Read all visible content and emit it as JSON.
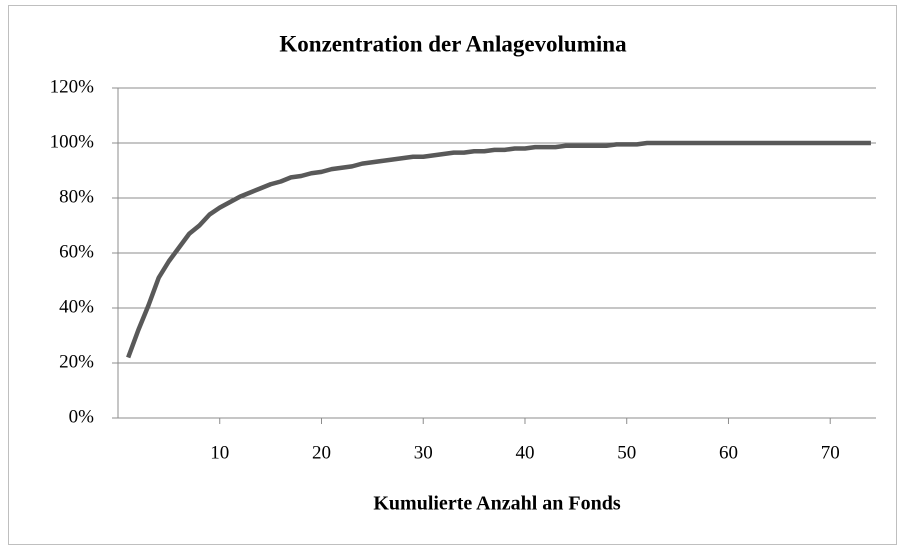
{
  "chart_data": {
    "type": "line",
    "title": "Konzentration der Anlagevolumina",
    "xlabel": "Kumulierte Anzahl an Fonds",
    "x": [
      1,
      2,
      3,
      4,
      5,
      6,
      7,
      8,
      9,
      10,
      11,
      12,
      13,
      14,
      15,
      16,
      17,
      18,
      19,
      20,
      21,
      22,
      23,
      24,
      25,
      26,
      27,
      28,
      29,
      30,
      31,
      32,
      33,
      34,
      35,
      36,
      37,
      38,
      39,
      40,
      41,
      42,
      43,
      44,
      45,
      46,
      47,
      48,
      49,
      50,
      51,
      52,
      53,
      54,
      55,
      56,
      57,
      58,
      59,
      60,
      61,
      62,
      63,
      64,
      65,
      66,
      67,
      68,
      69,
      70,
      71,
      72,
      73,
      74
    ],
    "series": [
      {
        "name": "Konzentration",
        "color": "#595959",
        "values": [
          22,
          32,
          41,
          51,
          57,
          62,
          67,
          70,
          74,
          76.5,
          78.5,
          80.5,
          82,
          83.5,
          85,
          86,
          87.5,
          88,
          89,
          89.5,
          90.5,
          91,
          91.5,
          92.5,
          93,
          93.5,
          94,
          94.5,
          95,
          95,
          95.5,
          96,
          96.5,
          96.5,
          97,
          97,
          97.5,
          97.5,
          98,
          98,
          98.5,
          98.5,
          98.5,
          99,
          99,
          99,
          99,
          99,
          99.5,
          99.5,
          99.5,
          100,
          100,
          100,
          100,
          100,
          100,
          100,
          100,
          100,
          100,
          100,
          100,
          100,
          100,
          100,
          100,
          100,
          100,
          100,
          100,
          100,
          100,
          100
        ]
      }
    ],
    "xlim": [
      0,
      74.5
    ],
    "xticks": [
      10,
      20,
      30,
      40,
      50,
      60,
      70
    ],
    "ylim": [
      0,
      120
    ],
    "yticks": [
      {
        "value": 0,
        "label": "0%"
      },
      {
        "value": 20,
        "label": "20%"
      },
      {
        "value": 40,
        "label": "40%"
      },
      {
        "value": 60,
        "label": "60%"
      },
      {
        "value": 80,
        "label": "80%"
      },
      {
        "value": 100,
        "label": "100%"
      },
      {
        "value": 120,
        "label": "120%"
      }
    ],
    "grid": true
  }
}
